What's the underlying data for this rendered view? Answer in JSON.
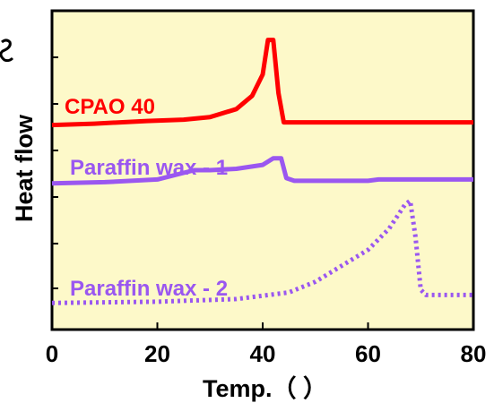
{
  "chart_data": {
    "type": "line",
    "xlabel": "Temp.（ ）",
    "ylabel": "Heat flow",
    "xlim": [
      0,
      80
    ],
    "x_ticks": [
      "0",
      "20",
      "40",
      "60",
      "80"
    ],
    "grid": false,
    "background_color": "#fdf9c9",
    "series": [
      {
        "name": "CPAO 40",
        "color": "#ff0000",
        "style": "solid",
        "points": [
          [
            0,
            7.7
          ],
          [
            8,
            7.75
          ],
          [
            18,
            7.85
          ],
          [
            25,
            7.9
          ],
          [
            30,
            8.0
          ],
          [
            35,
            8.3
          ],
          [
            38,
            8.8
          ],
          [
            40,
            9.6
          ],
          [
            41,
            10.9
          ],
          [
            42,
            10.9
          ],
          [
            43,
            8.9
          ],
          [
            44,
            7.8
          ],
          [
            45,
            7.8
          ],
          [
            60,
            7.8
          ],
          [
            75,
            7.8
          ],
          [
            80,
            7.8
          ]
        ]
      },
      {
        "name": "Paraffin wax - 1",
        "color": "#9a57f0",
        "style": "solid",
        "points": [
          [
            0,
            5.5
          ],
          [
            10,
            5.55
          ],
          [
            20,
            5.65
          ],
          [
            25,
            5.9
          ],
          [
            27,
            6.0
          ],
          [
            30,
            6.0
          ],
          [
            35,
            6.05
          ],
          [
            40,
            6.2
          ],
          [
            42,
            6.45
          ],
          [
            43.5,
            6.45
          ],
          [
            44.5,
            5.7
          ],
          [
            46,
            5.6
          ],
          [
            60,
            5.6
          ],
          [
            62,
            5.65
          ],
          [
            80,
            5.65
          ]
        ]
      },
      {
        "name": "Paraffin wax - 2",
        "color": "#9a57f0",
        "style": "dotted",
        "points": [
          [
            0,
            1.0
          ],
          [
            20,
            1.05
          ],
          [
            35,
            1.15
          ],
          [
            45,
            1.4
          ],
          [
            50,
            1.8
          ],
          [
            55,
            2.4
          ],
          [
            60,
            3.0
          ],
          [
            64,
            3.8
          ],
          [
            67,
            4.7
          ],
          [
            68,
            4.85
          ],
          [
            69,
            3.5
          ],
          [
            70,
            1.5
          ],
          [
            71,
            1.3
          ],
          [
            80,
            1.3
          ]
        ]
      }
    ]
  }
}
